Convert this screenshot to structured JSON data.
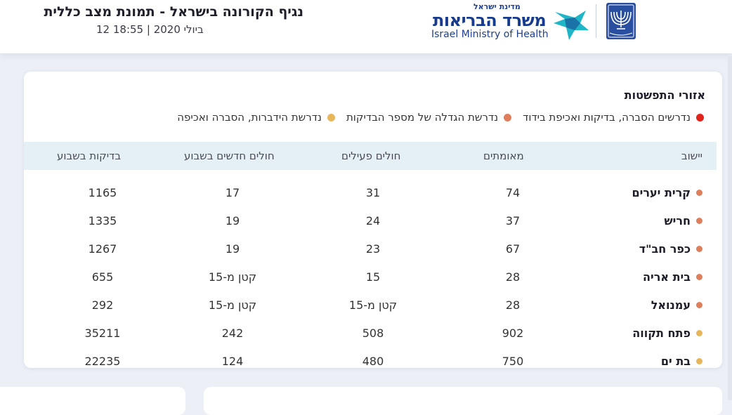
{
  "header": {
    "title": "נגיף הקורונה בישראל - תמונת מצב כללית",
    "subtitle": "12 ביולי 2020 | 18:55",
    "logo": {
      "sub_he": "מדינת ישראל",
      "main_he": "משרד הבריאות",
      "en": "Israel Ministry of Health",
      "star_icon": "star-logo-icon",
      "emblem_icon": "menorah-emblem-icon",
      "colors": {
        "blue": "#163a8c",
        "teal": "#1fb7c7"
      }
    }
  },
  "areas": {
    "title": "אזורי התפשטות",
    "legend": [
      {
        "label": "נדרשים הסברה, בדיקות ואכיפת בידוד",
        "color": "#e1231c"
      },
      {
        "label": "נדרשת הגדלה של מספר הבדיקות",
        "color": "#de7e5d"
      },
      {
        "label": "נדרשת הידברות, הסברה ואכיפה",
        "color": "#e8b65a"
      }
    ]
  },
  "table": {
    "headers": {
      "city": "יישוב",
      "confirmed": "מאומתים",
      "active": "חולים פעילים",
      "new_week": "חולים חדשים בשבוע",
      "tests_week": "בדיקות בשבוע"
    },
    "rows": [
      {
        "city": "קרית יערים",
        "confirmed": "74",
        "active": "31",
        "new_week": "17",
        "tests_week": "1165",
        "color": "#de7e5d"
      },
      {
        "city": "חריש",
        "confirmed": "37",
        "active": "24",
        "new_week": "19",
        "tests_week": "1335",
        "color": "#de7e5d"
      },
      {
        "city": "כפר חב\"ד",
        "confirmed": "67",
        "active": "23",
        "new_week": "19",
        "tests_week": "1267",
        "color": "#de7e5d"
      },
      {
        "city": "בית אריה",
        "confirmed": "28",
        "active": "15",
        "new_week": "קטן מ-15",
        "tests_week": "655",
        "color": "#de7e5d"
      },
      {
        "city": "עמנואל",
        "confirmed": "28",
        "active": "קטן מ-15",
        "new_week": "קטן מ-15",
        "tests_week": "292",
        "color": "#de7e5d"
      },
      {
        "city": "פתח תקווה",
        "confirmed": "902",
        "active": "508",
        "new_week": "242",
        "tests_week": "35211",
        "color": "#e8b65a"
      },
      {
        "city": "בת ים",
        "confirmed": "750",
        "active": "480",
        "new_week": "124",
        "tests_week": "22235",
        "color": "#e8b65a"
      }
    ]
  }
}
